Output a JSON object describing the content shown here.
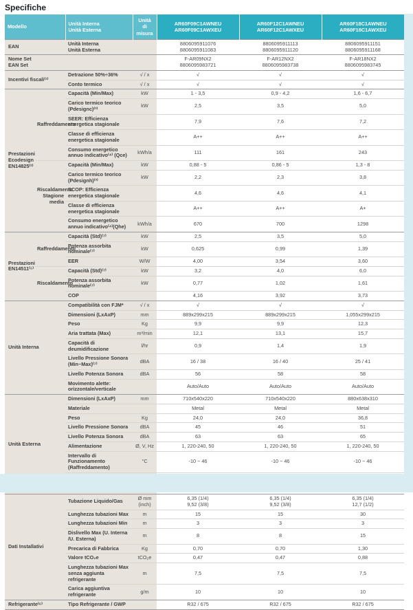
{
  "page_title": "Specifiche",
  "colors": {
    "header_product_teal": "#2badc2",
    "header_left_teal": "#5fbecd",
    "label_column_beige": "#e8e4dd",
    "page_accent_blue": "#d9ecf2"
  },
  "table": {
    "header": {
      "modello": "Modello",
      "unit_column": "Unità Interna\nUnità Esterna",
      "measure": "Unità di\nmisura",
      "products": [
        "AR60F09C1AWNEU\nAR60F09C1AWXEU",
        "AR60F12C1AWNEU\nAR60F12C1AWXEU",
        "AR60F18C1AWNEU\nAR60F18C1AWXEU"
      ]
    },
    "sections": [
      {
        "group": "EAN",
        "rowgroups": [
          {
            "sub": "",
            "rows": [
              {
                "label": "Unità Interna\nUnità Esterna",
                "unit": "",
                "values": [
                  "8806095911076\n8806095911083",
                  "8806095911113\n8806095911120",
                  "8806095911151\n8806095911168"
                ]
              }
            ]
          }
        ]
      },
      {
        "group": "Nome Set\nEAN Set",
        "rowgroups": [
          {
            "sub": "",
            "rows": [
              {
                "label": "",
                "unit": "",
                "values": [
                  "F-AR09NX2\n8806095983721",
                  "F-AR12NX2\n8806095983738",
                  "F-AR18NX2\n8806095983745"
                ]
              }
            ]
          }
        ]
      },
      {
        "group": "Incentivi fiscali⁽¹⁾",
        "rowgroups": [
          {
            "sub": "",
            "rows": [
              {
                "label": "Detrazione 50%÷36%",
                "unit": "√ / x",
                "values": [
                  "√",
                  "√",
                  "√"
                ]
              },
              {
                "label": "Conto termico",
                "unit": "√ / x",
                "values": [
                  "√",
                  "√",
                  "√"
                ]
              }
            ]
          }
        ]
      },
      {
        "group": "Prestazioni Ecodesign EN14825⁽²⁾",
        "rowgroups": [
          {
            "sub": "Raffreddamento",
            "rows": [
              {
                "label": "Capacità (Min/Max)",
                "unit": "kW",
                "values": [
                  "1 - 3,5",
                  "0,9 - 4,2",
                  "1,6 - 6,7"
                ]
              },
              {
                "label": "Carico termico teorico (Pdesignc)⁽³⁾",
                "unit": "kW",
                "values": [
                  "2,5",
                  "3,5",
                  "5,0"
                ]
              },
              {
                "label": "SEER: Efficienza energetica stagionale",
                "unit": "",
                "values": [
                  "7,9",
                  "7,6",
                  "7,2"
                ]
              },
              {
                "label": "Classe di efficienza energetica stagionale",
                "unit": "",
                "values": [
                  "A++",
                  "A++",
                  "A++"
                ]
              },
              {
                "label": "Consumo energetico annuo indicativo⁽⁴⁾ (Qce)",
                "unit": "kWh/a",
                "values": [
                  "111",
                  "161",
                  "243"
                ]
              }
            ]
          },
          {
            "sub": "Riscaldamento Stagione media",
            "rows": [
              {
                "label": "Capacità (Min/Max)",
                "unit": "kW",
                "values": [
                  "0,88 - 5",
                  "0,86 - 5",
                  "1,3 - 8"
                ]
              },
              {
                "label": "Carico termico teorico (Pdesignh)⁽³⁾",
                "unit": "kW",
                "values": [
                  "2,2",
                  "2,3",
                  "3,8"
                ]
              },
              {
                "label": "SCOP: Efficienza energetica stagionale",
                "unit": "",
                "values": [
                  "4,6",
                  "4,6",
                  "4,1"
                ]
              },
              {
                "label": "Classe di efficienza energetica stagionale",
                "unit": "",
                "values": [
                  "A++",
                  "A++",
                  "A+"
                ]
              },
              {
                "label": "Consumo energetico annuo indicativo⁽⁴⁾(Qhe)",
                "unit": "kWh/a",
                "values": [
                  "670",
                  "700",
                  "1298"
                ]
              }
            ]
          }
        ]
      },
      {
        "group": "Prestazioni EN14511⁽⁵⁾",
        "rowgroups": [
          {
            "sub": "Raffreddamento",
            "rows": [
              {
                "label": "Capacità (Std)⁽⁷⁾",
                "unit": "kW",
                "values": [
                  "2,5",
                  "3,5",
                  "5,0"
                ]
              },
              {
                "label": "Potenza assorbita nominale⁽⁷⁾",
                "unit": "kW",
                "values": [
                  "0,625",
                  "0,99",
                  "1,39"
                ]
              },
              {
                "label": "EER",
                "unit": "W/W",
                "values": [
                  "4,00",
                  "3,54",
                  "3,60"
                ]
              }
            ]
          },
          {
            "sub": "Riscaldamento",
            "rows": [
              {
                "label": "Capacità (Std)⁽⁷⁾",
                "unit": "kW",
                "values": [
                  "3,2",
                  "4,0",
                  "6,0"
                ]
              },
              {
                "label": "Potenza assorbita nominale⁽⁷⁾",
                "unit": "kW",
                "values": [
                  "0,77",
                  "1,02",
                  "1,61"
                ]
              },
              {
                "label": "COP",
                "unit": "",
                "values": [
                  "4,16",
                  "3,92",
                  "3,73"
                ]
              }
            ]
          }
        ]
      },
      {
        "group": "Unità Interna",
        "rowgroups": [
          {
            "sub": "",
            "rows": [
              {
                "label": "Compatibilità con FJM*",
                "unit": "√ / x",
                "values": [
                  "√",
                  "√",
                  "√"
                ]
              },
              {
                "label": "Dimensioni (LxAxP)",
                "unit": "mm",
                "values": [
                  "889x299x215",
                  "889x299x215",
                  "1,055x299x215"
                ]
              },
              {
                "label": "Peso",
                "unit": "Kg",
                "values": [
                  "9,9",
                  "9,9",
                  "12,3"
                ]
              },
              {
                "label": "Aria trattata (Max)",
                "unit": "m³/min",
                "values": [
                  "12,1",
                  "13,1",
                  "15,7"
                ]
              },
              {
                "label": "Capacità di deumidificazione",
                "unit": "l/hr",
                "values": [
                  "0,9",
                  "1,4",
                  "1,9"
                ]
              },
              {
                "label": "Livello Pressione Sonora (Min~Max)⁽⁷⁾",
                "unit": "dBA",
                "values": [
                  "16 / 38",
                  "16 / 40",
                  "25 / 41"
                ]
              },
              {
                "label": "Livello Potenza Sonora",
                "unit": "dBA",
                "values": [
                  "56",
                  "58",
                  "58"
                ]
              },
              {
                "label": "Movimento alette: orizzontale/verticale",
                "unit": "",
                "values": [
                  "Auto/Auto",
                  "Auto/Auto",
                  "Auto/Auto"
                ]
              }
            ]
          }
        ]
      },
      {
        "group": "Unità Esterna",
        "rowgroups": [
          {
            "sub": "",
            "rows": [
              {
                "label": "Dimensioni (LxAxP)",
                "unit": "mm",
                "values": [
                  "710x540x220",
                  "710x540x220",
                  "880x638x310"
                ]
              },
              {
                "label": "Materiale",
                "unit": "",
                "values": [
                  "Metal",
                  "Metal",
                  "Metal"
                ]
              },
              {
                "label": "Peso",
                "unit": "Kg",
                "values": [
                  "24,0",
                  "24,0",
                  "36,8"
                ]
              },
              {
                "label": "Livello Pressione Sonora",
                "unit": "dBA",
                "values": [
                  "45",
                  "46",
                  "51"
                ]
              },
              {
                "label": "Livello Potenza Sonora",
                "unit": "dBA",
                "values": [
                  "63",
                  "63",
                  "65"
                ]
              },
              {
                "label": "Alimentazione",
                "unit": "Ø, V, Hz",
                "values": [
                  "1, 220-240, 50",
                  "1, 220-240, 50",
                  "1, 220-240, 50"
                ]
              },
              {
                "label": "Intervallo di Funzionamento (Raffreddamento)",
                "unit": "°C",
                "values": [
                  "-10 ~ 46",
                  "-10 ~ 46",
                  "-10 ~ 46"
                ]
              },
              {
                "label": "Intervallo di Funzionamento (Riscaldamento)",
                "unit": "°C",
                "values": [
                  "-15 ~ 24",
                  "-15 ~ 24",
                  "-15 ~ 24"
                ]
              }
            ]
          }
        ]
      },
      {
        "group": "Dati Installativi",
        "rowgroups": [
          {
            "sub": "",
            "rows": [
              {
                "label": "Tubazione Liquido/Gas",
                "unit": "Ø mm\n(inch)",
                "values": [
                  "6,35 (1/4)\n9,52 (3/8)",
                  "6,35 (1/4)\n9,52 (3/8)",
                  "6,35 (1/4)\n12,7 (1/2)"
                ]
              },
              {
                "label": "Lunghezza tubazioni Max",
                "unit": "m",
                "values": [
                  "15",
                  "15",
                  "30"
                ]
              },
              {
                "label": "Lunghezza tubazioni Min",
                "unit": "m",
                "values": [
                  "3",
                  "3",
                  "3"
                ]
              },
              {
                "label": "Dislivello Max (U. Interna /U. Esterna)",
                "unit": "m",
                "values": [
                  "8",
                  "8",
                  "15"
                ]
              },
              {
                "label": "Precarica di Fabbrica",
                "unit": "Kg",
                "values": [
                  "0,70",
                  "0,70",
                  "1,30"
                ]
              },
              {
                "label": "Valore tCO₂e",
                "unit": "tCO₂e",
                "values": [
                  "0,47",
                  "0,47",
                  "0,88"
                ]
              },
              {
                "label": "Lunghezza tubazioni Max senza aggiunta refrigerante",
                "unit": "m",
                "values": [
                  "7,5",
                  "7,5",
                  "7,5"
                ]
              },
              {
                "label": "Carica aggiuntiva refrigerante",
                "unit": "g/m",
                "values": [
                  "10",
                  "10",
                  "10"
                ]
              }
            ]
          }
        ]
      },
      {
        "group": "Refrigerante⁽⁶⁾",
        "rowgroups": [
          {
            "sub": "",
            "rows": [
              {
                "label": "Tipo Refrigerante / GWP",
                "unit": "",
                "values": [
                  "R32 / 675",
                  "R32 / 675",
                  "R32 / 675"
                ]
              }
            ]
          }
        ]
      }
    ]
  }
}
